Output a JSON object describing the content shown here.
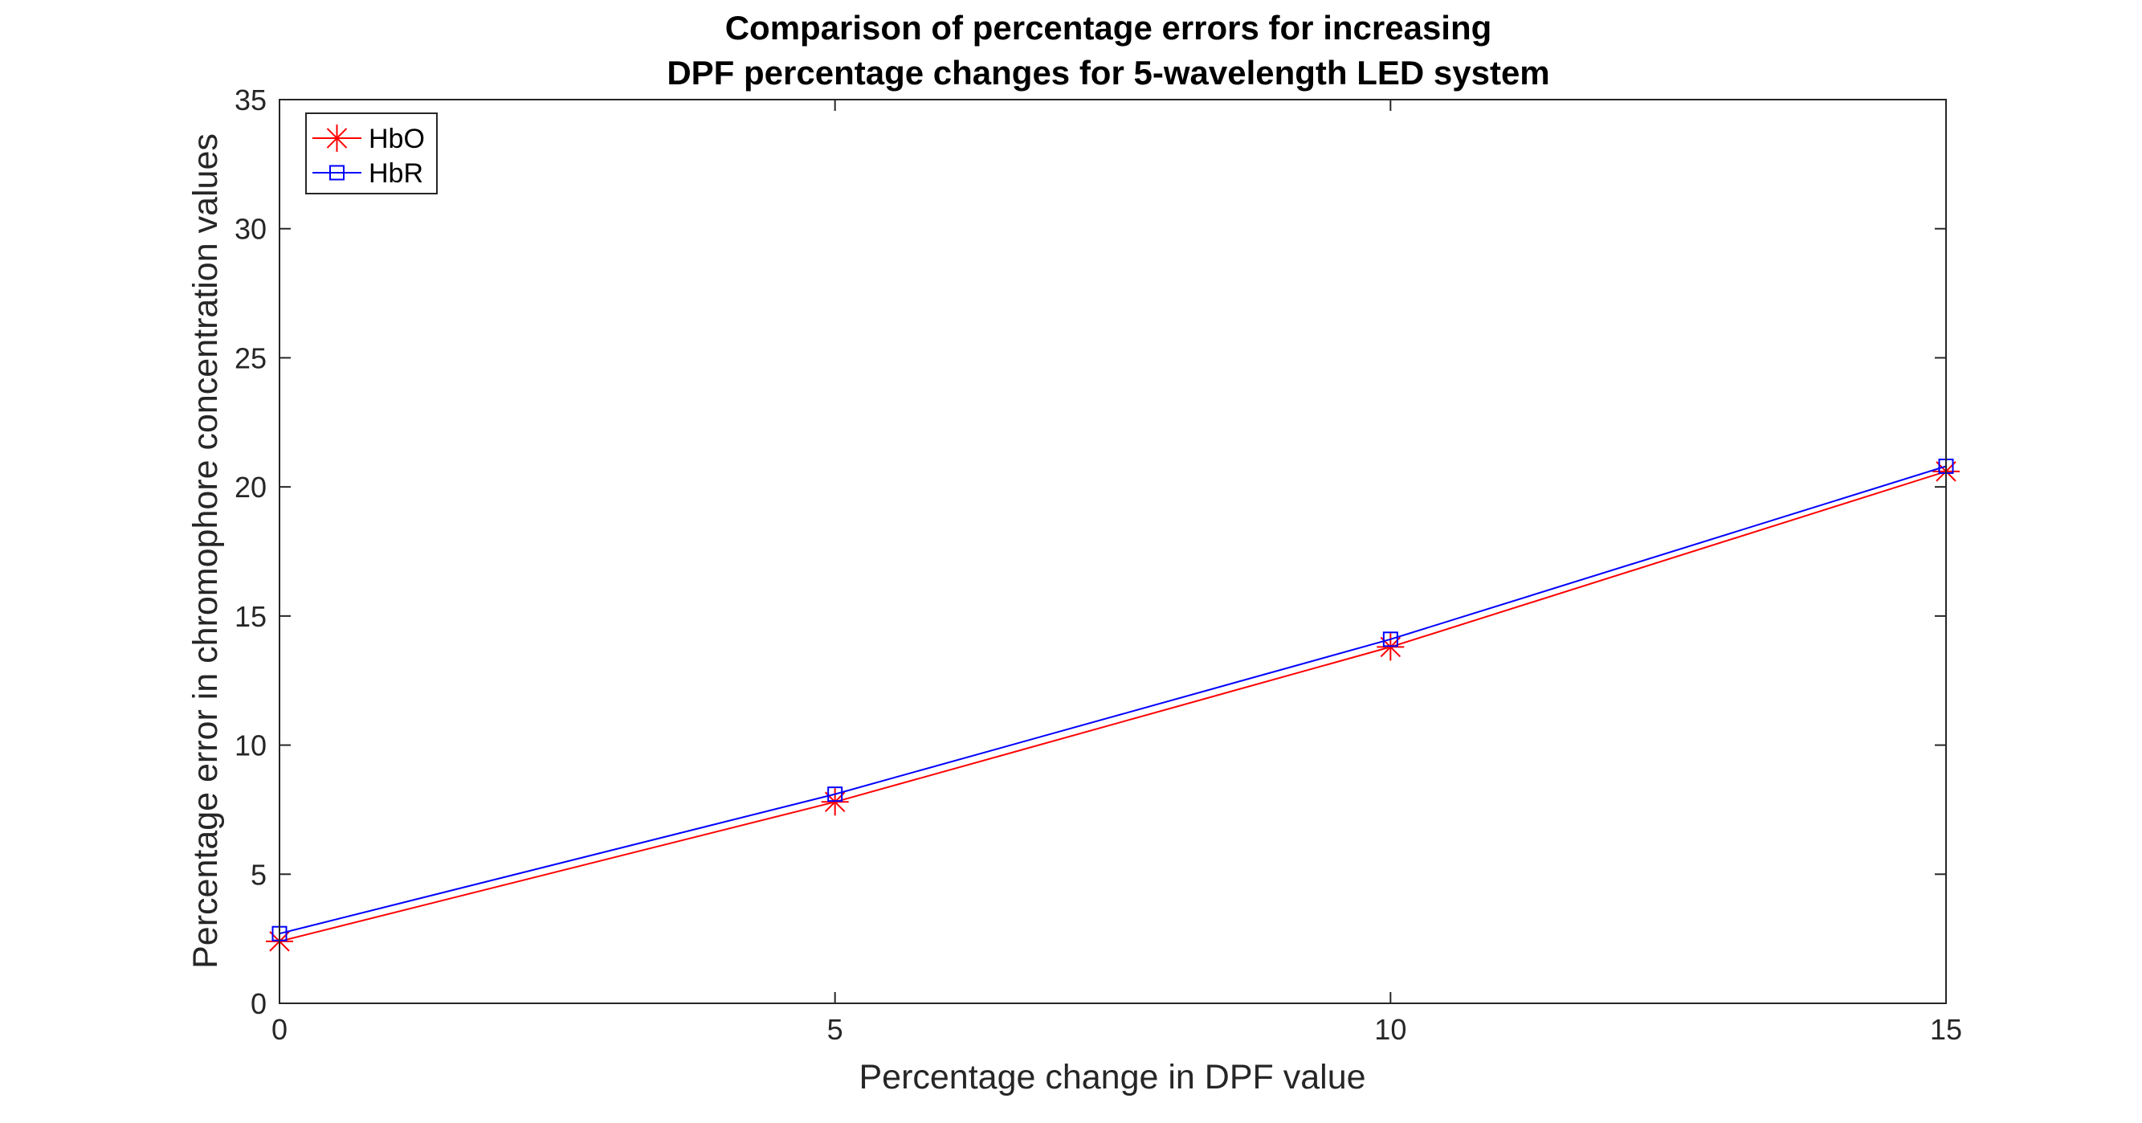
{
  "chart_data": {
    "type": "line",
    "title_lines": [
      "Comparison of percentage errors for increasing",
      "DPF percentage changes for 5-wavelength LED system"
    ],
    "xlabel": "Percentage change in DPF value",
    "ylabel": "Percentage error in chromophore concentration values",
    "xlim": [
      0,
      15
    ],
    "ylim": [
      0,
      35
    ],
    "xticks": [
      0,
      5,
      10,
      15
    ],
    "yticks": [
      0,
      5,
      10,
      15,
      20,
      25,
      30,
      35
    ],
    "grid": false,
    "legend_position": "top-left",
    "series": [
      {
        "name": "HbO",
        "color": "#ff0000",
        "marker": "asterisk",
        "x": [
          0,
          5,
          10,
          15
        ],
        "y": [
          2.4,
          7.8,
          13.8,
          20.6
        ]
      },
      {
        "name": "HbR",
        "color": "#0000ff",
        "marker": "square",
        "x": [
          0,
          5,
          10,
          15
        ],
        "y": [
          2.7,
          8.1,
          14.1,
          20.8
        ]
      }
    ]
  }
}
